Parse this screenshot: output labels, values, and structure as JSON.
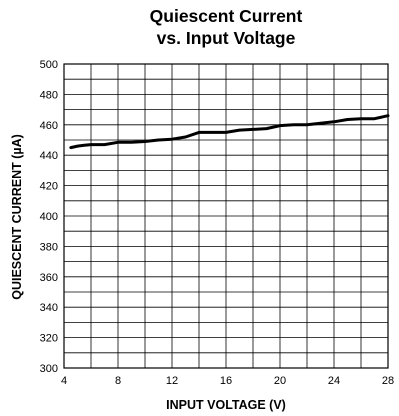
{
  "chart_data": {
    "type": "line",
    "title_lines": [
      "Quiescent Current",
      "vs. Input Voltage"
    ],
    "xlabel": "INPUT VOLTAGE (V)",
    "ylabel": "QUIESCENT CURRENT (µA)",
    "xlim": [
      4,
      28
    ],
    "ylim": [
      300,
      500
    ],
    "x_ticks": [
      4,
      8,
      12,
      16,
      20,
      24,
      28
    ],
    "y_ticks": [
      300,
      320,
      340,
      360,
      380,
      400,
      420,
      440,
      460,
      480,
      500
    ],
    "grid": true,
    "line_color": "#000000",
    "series": [
      {
        "x": [
          4.5,
          5,
          5.5,
          6,
          7,
          8,
          9,
          10,
          11,
          12,
          13,
          14,
          15,
          16,
          17,
          18,
          19,
          20,
          21,
          22,
          23,
          24,
          25,
          26,
          27,
          28
        ],
        "y": [
          445,
          446,
          446.5,
          447,
          447,
          448.5,
          448.5,
          449,
          450,
          450.5,
          452,
          455,
          455,
          455,
          456.5,
          457,
          457.5,
          459.5,
          460,
          460,
          461,
          462,
          463.5,
          464,
          464,
          466
        ]
      }
    ]
  }
}
